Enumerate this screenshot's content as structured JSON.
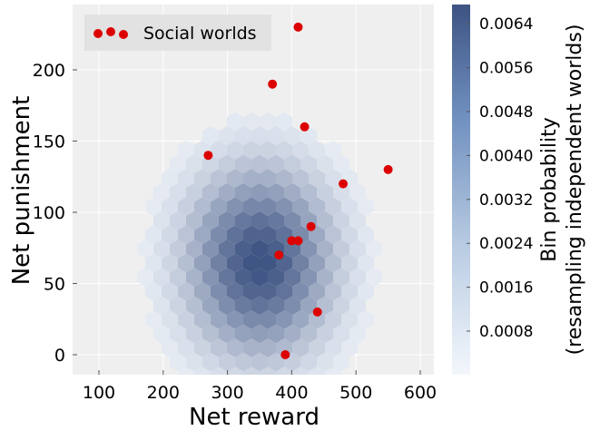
{
  "chart_data": {
    "type": "hexbin+scatter",
    "xlabel": "Net reward",
    "ylabel": "Net punishment",
    "xlim": [
      59,
      624
    ],
    "ylim": [
      -14,
      246
    ],
    "xticks": [
      100,
      200,
      300,
      400,
      500,
      600
    ],
    "yticks": [
      0,
      50,
      100,
      150,
      200
    ],
    "grid": true,
    "legend": {
      "placement": "top-left",
      "label": "Social worlds"
    },
    "scatter_color": "#dd0000",
    "scatter": [
      [
        410,
        230
      ],
      [
        370,
        190
      ],
      [
        420,
        160
      ],
      [
        270,
        140
      ],
      [
        550,
        130
      ],
      [
        480,
        120
      ],
      [
        430,
        90
      ],
      [
        400,
        80
      ],
      [
        410,
        80
      ],
      [
        380,
        70
      ],
      [
        440,
        30
      ],
      [
        390,
        0
      ]
    ],
    "hexbin_density_model": {
      "center": [
        350,
        65
      ],
      "sd": [
        72,
        42
      ],
      "peak": 0.0066
    },
    "colorbar": {
      "label_line1": "Bin probability",
      "label_line2": "(resampling independent worlds)",
      "range": [
        1e-05,
        0.00675
      ],
      "ticks": [
        "0.0008",
        "0.0016",
        "0.0024",
        "0.0032",
        "0.0040",
        "0.0048",
        "0.0056",
        "0.0064"
      ],
      "color_low": "#f3f7fc",
      "color_high": "#3d5382"
    }
  }
}
